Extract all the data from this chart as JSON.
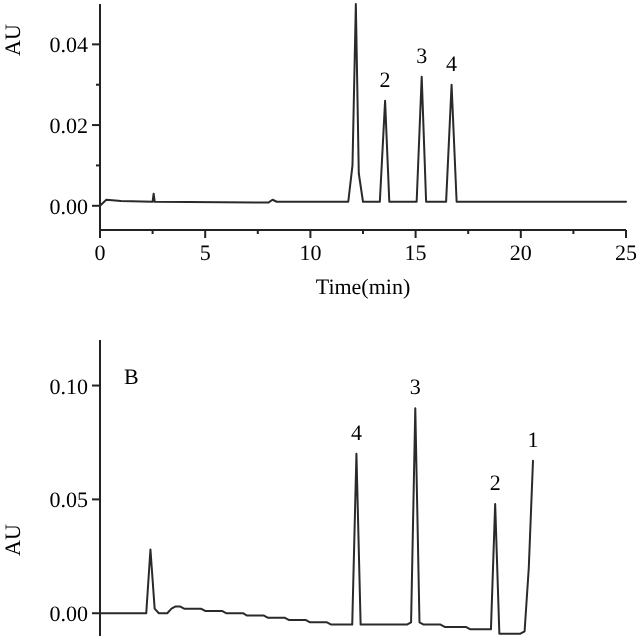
{
  "chart_data": [
    {
      "type": "line",
      "xlabel": "Time(min)",
      "ylabel": "AU",
      "xlim": [
        0,
        25
      ],
      "ylim": [
        -0.006,
        0.05
      ],
      "xticks": [
        0,
        {
          "value": 2.5,
          "label": null
        },
        5,
        {
          "value": 7.5,
          "label": null
        },
        10,
        {
          "value": 12.5,
          "label": null
        },
        15,
        {
          "value": 17.5,
          "label": null
        },
        20,
        {
          "value": 22.5,
          "label": null
        },
        25
      ],
      "yticks": [
        {
          "value": 0,
          "label": "0.00"
        },
        {
          "value": 0.01,
          "label": null
        },
        {
          "value": 0.02,
          "label": "0.02"
        },
        {
          "value": 0.03,
          "label": null
        },
        {
          "value": 0.04,
          "label": "0.04"
        }
      ],
      "series": [
        {
          "color": "#2a2a2a",
          "x": [
            0,
            0.3,
            1,
            2.5,
            2.55,
            2.6,
            8,
            8.2,
            8.4,
            11.8,
            12.0,
            12.16,
            12.3,
            12.5,
            13.3,
            13.55,
            13.75,
            15.05,
            15.29,
            15.5,
            16.45,
            16.71,
            16.95,
            25
          ],
          "values": [
            0,
            0.0015,
            0.0012,
            0.001,
            0.003,
            0.001,
            0.0008,
            0.0015,
            0.001,
            0.001,
            0.01,
            0.05,
            0.008,
            0.001,
            0.001,
            0.026,
            0.001,
            0.001,
            0.032,
            0.001,
            0.001,
            0.03,
            0.001,
            0.001
          ]
        }
      ],
      "annotations": [
        {
          "text": "2",
          "x": 13.55,
          "y": 0.026
        },
        {
          "text": "3",
          "x": 15.29,
          "y": 0.032
        },
        {
          "text": "4",
          "x": 16.71,
          "y": 0.03
        }
      ]
    },
    {
      "type": "line",
      "ylabel": "AU",
      "ylim": [
        -0.01,
        0.12
      ],
      "tick_labels": "y",
      "categories": [
        null,
        null,
        null,
        null,
        null,
        null,
        null,
        null,
        null,
        null,
        null,
        null,
        null,
        null,
        null,
        null,
        null,
        null,
        null,
        null,
        null,
        null,
        null,
        null,
        null,
        null,
        null,
        null,
        null,
        null,
        null,
        null,
        null,
        null,
        null,
        null,
        null,
        null,
        null,
        null,
        null,
        null,
        null,
        null,
        null,
        null,
        null,
        null,
        null,
        null,
        null,
        null,
        null,
        null,
        null,
        null,
        null,
        null,
        null,
        null,
        null,
        null,
        null,
        null,
        null,
        null,
        null,
        null,
        null,
        null,
        null,
        null,
        null,
        null,
        null,
        null,
        null,
        null,
        null,
        null,
        null,
        null,
        null,
        null,
        null,
        null,
        null,
        null,
        null,
        null,
        null,
        null,
        null,
        null,
        null,
        null,
        null,
        null,
        null,
        null,
        null,
        null,
        null,
        null,
        null,
        null
      ],
      "yticks": [
        {
          "value": 0,
          "label": "0.00"
        },
        {
          "value": 0.05,
          "label": "0.05"
        },
        {
          "value": 0.1,
          "label": "0.10"
        }
      ],
      "series": [
        {
          "color": "#2a2a2a",
          "values": [
            0,
            0,
            0,
            0,
            0,
            0,
            0,
            0,
            0,
            0,
            0,
            0,
            0.028,
            0.002,
            0,
            null,
            0,
            0.002,
            0.003,
            0.003,
            0.002,
            0.002,
            0.002,
            0.002,
            0.002,
            0.001,
            0.001,
            0.001,
            0.001,
            0.001,
            0,
            0,
            0,
            0,
            0,
            -0.001,
            -0.001,
            -0.001,
            -0.001,
            -0.001,
            -0.002,
            -0.002,
            -0.002,
            -0.002,
            -0.002,
            -0.003,
            -0.003,
            -0.003,
            -0.003,
            -0.003,
            -0.004,
            -0.004,
            -0.004,
            -0.004,
            -0.004,
            -0.005,
            -0.005,
            -0.005,
            -0.005,
            -0.005,
            -0.005,
            0.07,
            -0.005,
            -0.005,
            -0.005,
            -0.005,
            -0.005,
            -0.005,
            -0.005,
            -0.005,
            -0.005,
            -0.005,
            -0.005,
            -0.005,
            -0.004,
            0.09,
            -0.004,
            -0.005,
            -0.005,
            -0.005,
            -0.005,
            -0.005,
            -0.006,
            -0.006,
            -0.006,
            -0.006,
            -0.006,
            -0.006,
            -0.007,
            -0.007,
            -0.007,
            -0.007,
            -0.007,
            -0.007,
            0.048,
            -0.009,
            -0.009,
            -0.009,
            -0.009,
            -0.009,
            -0.009,
            -0.008,
            0.02,
            0.067,
            null,
            null
          ]
        }
      ],
      "annotations": [
        "B",
        {
          "text": "4",
          "y": 0.07
        },
        {
          "text": "3",
          "y": 0.09
        },
        {
          "text": "2",
          "y": 0.048
        },
        {
          "text": "1",
          "y": 0.067
        }
      ]
    }
  ]
}
